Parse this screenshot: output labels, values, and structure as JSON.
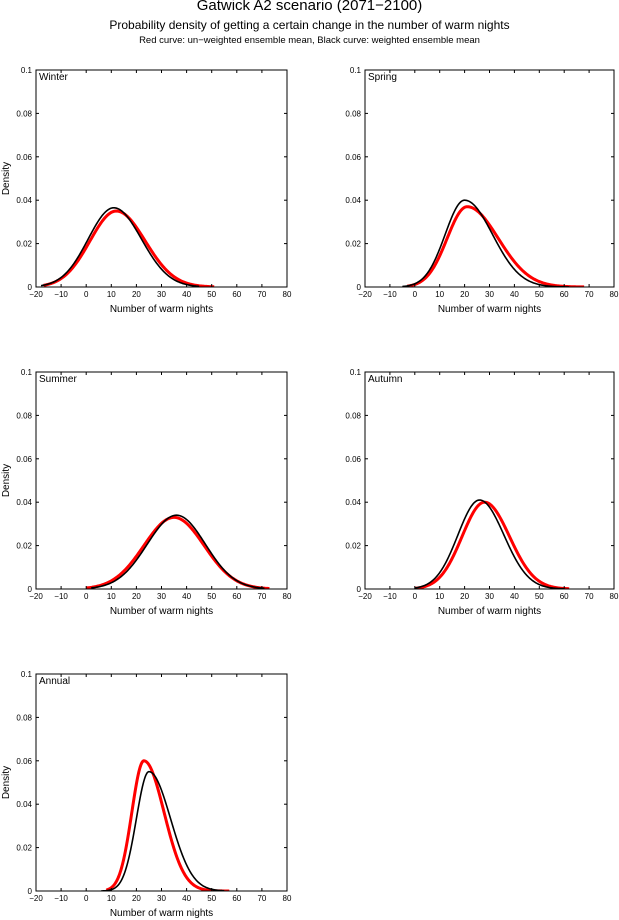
{
  "header": {
    "title": "Gatwick A2 scenario (2071−2100)",
    "subtitle": "Probability density of getting a certain change in the number of warm nights",
    "note": "Red curve: un−weighted ensemble mean, Black curve: weighted ensemble mean"
  },
  "colors": {
    "unweighted": "#ff0000",
    "weighted": "#000000"
  },
  "chart_data": [
    {
      "type": "line",
      "title": "Winter",
      "xlabel": "Number of warm nights",
      "ylabel": "Density",
      "xlim": [
        -20,
        80
      ],
      "ylim": [
        0,
        0.1
      ],
      "xticks": [
        "−20",
        "−10",
        "0",
        "10",
        "20",
        "30",
        "40",
        "50",
        "60",
        "70",
        "80"
      ],
      "yticks": [
        "0",
        "0.02",
        "0.04",
        "0.06",
        "0.08",
        "0.1"
      ],
      "series": [
        {
          "name": "un-weighted ensemble mean",
          "color": "red",
          "peak_x": 12,
          "peak_y": 0.035,
          "sd_left": 10.5,
          "sd_right": 11.5,
          "range": [
            -17,
            51
          ]
        },
        {
          "name": "weighted ensemble mean",
          "color": "black",
          "peak_x": 11,
          "peak_y": 0.0365,
          "sd_left": 10.2,
          "sd_right": 11,
          "range": [
            -18,
            45
          ]
        }
      ]
    },
    {
      "type": "line",
      "title": "Spring",
      "xlabel": "Number of warm nights",
      "ylabel": "",
      "xlim": [
        -20,
        80
      ],
      "ylim": [
        0,
        0.1
      ],
      "xticks": [
        "−20",
        "−10",
        "0",
        "10",
        "20",
        "30",
        "40",
        "50",
        "60",
        "70",
        "80"
      ],
      "yticks": [
        "0",
        "0.02",
        "0.04",
        "0.06",
        "0.08",
        "0.1"
      ],
      "series": [
        {
          "name": "un-weighted ensemble mean",
          "color": "red",
          "peak_x": 21,
          "peak_y": 0.037,
          "sd_left": 8,
          "sd_right": 12.5,
          "range": [
            -3,
            68
          ]
        },
        {
          "name": "weighted ensemble mean",
          "color": "black",
          "peak_x": 20,
          "peak_y": 0.04,
          "sd_left": 7.8,
          "sd_right": 11.2,
          "range": [
            -5,
            62
          ]
        }
      ]
    },
    {
      "type": "line",
      "title": "Summer",
      "xlabel": "Number of warm nights",
      "ylabel": "Density",
      "xlim": [
        -20,
        80
      ],
      "ylim": [
        0,
        0.1
      ],
      "xticks": [
        "−20",
        "−10",
        "0",
        "10",
        "20",
        "30",
        "40",
        "50",
        "60",
        "70",
        "80"
      ],
      "yticks": [
        "0",
        "0.02",
        "0.04",
        "0.06",
        "0.08",
        "0.1"
      ],
      "series": [
        {
          "name": "un-weighted ensemble mean",
          "color": "red",
          "peak_x": 35,
          "peak_y": 0.033,
          "sd_left": 12,
          "sd_right": 12,
          "range": [
            0,
            73
          ]
        },
        {
          "name": "weighted ensemble mean",
          "color": "black",
          "peak_x": 36,
          "peak_y": 0.034,
          "sd_left": 11.7,
          "sd_right": 11.5,
          "range": [
            2,
            71
          ]
        }
      ]
    },
    {
      "type": "line",
      "title": "Autumn",
      "xlabel": "Number of warm nights",
      "ylabel": "",
      "xlim": [
        -20,
        80
      ],
      "ylim": [
        0,
        0.1
      ],
      "xticks": [
        "−20",
        "−10",
        "0",
        "10",
        "20",
        "30",
        "40",
        "50",
        "60",
        "70",
        "80"
      ],
      "yticks": [
        "0",
        "0.02",
        "0.04",
        "0.06",
        "0.08",
        "0.1"
      ],
      "series": [
        {
          "name": "un-weighted ensemble mean",
          "color": "red",
          "peak_x": 28,
          "peak_y": 0.04,
          "sd_left": 9,
          "sd_right": 10,
          "range": [
            0,
            62
          ]
        },
        {
          "name": "weighted ensemble mean",
          "color": "black",
          "peak_x": 26,
          "peak_y": 0.041,
          "sd_left": 8.7,
          "sd_right": 9.8,
          "range": [
            0,
            60
          ]
        }
      ]
    },
    {
      "type": "line",
      "title": "Annual",
      "xlabel": "Number of warm nights",
      "ylabel": "Density",
      "xlim": [
        -20,
        80
      ],
      "ylim": [
        0,
        0.1
      ],
      "xticks": [
        "−20",
        "−10",
        "0",
        "10",
        "20",
        "30",
        "40",
        "50",
        "60",
        "70",
        "80"
      ],
      "yticks": [
        "0",
        "0.02",
        "0.04",
        "0.06",
        "0.08",
        "0.1"
      ],
      "series": [
        {
          "name": "un-weighted ensemble mean",
          "color": "red",
          "peak_x": 23,
          "peak_y": 0.06,
          "sd_left": 4.8,
          "sd_right": 8,
          "range": [
            8,
            57
          ]
        },
        {
          "name": "weighted ensemble mean",
          "color": "black",
          "peak_x": 25,
          "peak_y": 0.055,
          "sd_left": 5,
          "sd_right": 8.6,
          "range": [
            6,
            55
          ]
        }
      ]
    }
  ]
}
